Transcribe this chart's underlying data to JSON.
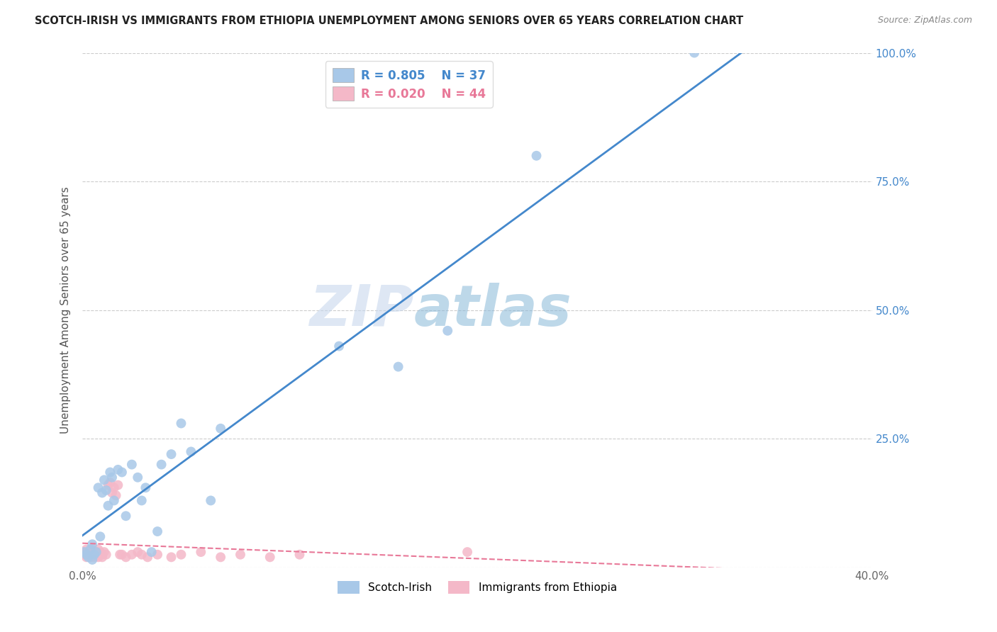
{
  "title": "SCOTCH-IRISH VS IMMIGRANTS FROM ETHIOPIA UNEMPLOYMENT AMONG SENIORS OVER 65 YEARS CORRELATION CHART",
  "source": "Source: ZipAtlas.com",
  "ylabel": "Unemployment Among Seniors over 65 years",
  "xlim": [
    0,
    0.4
  ],
  "ylim": [
    0,
    1.0
  ],
  "scotch_irish_R": 0.805,
  "scotch_irish_N": 37,
  "ethiopia_R": 0.02,
  "ethiopia_N": 44,
  "scotch_irish_color": "#a8c8e8",
  "ethiopia_color": "#f4b8c8",
  "scotch_irish_line_color": "#4488cc",
  "ethiopia_line_color": "#e87898",
  "watermark_zip": "ZIP",
  "watermark_atlas": "atlas",
  "background_color": "#ffffff",
  "scotch_irish_x": [
    0.001,
    0.002,
    0.003,
    0.004,
    0.005,
    0.005,
    0.006,
    0.007,
    0.008,
    0.009,
    0.01,
    0.011,
    0.012,
    0.013,
    0.014,
    0.015,
    0.016,
    0.018,
    0.02,
    0.022,
    0.025,
    0.028,
    0.03,
    0.032,
    0.035,
    0.038,
    0.04,
    0.045,
    0.05,
    0.055,
    0.065,
    0.07,
    0.13,
    0.16,
    0.185,
    0.23,
    0.31
  ],
  "scotch_irish_y": [
    0.03,
    0.025,
    0.02,
    0.035,
    0.015,
    0.045,
    0.025,
    0.03,
    0.155,
    0.06,
    0.145,
    0.17,
    0.15,
    0.12,
    0.185,
    0.175,
    0.13,
    0.19,
    0.185,
    0.1,
    0.2,
    0.175,
    0.13,
    0.155,
    0.03,
    0.07,
    0.2,
    0.22,
    0.28,
    0.225,
    0.13,
    0.27,
    0.43,
    0.39,
    0.46,
    0.8,
    1.0
  ],
  "ethiopia_x": [
    0.001,
    0.001,
    0.002,
    0.002,
    0.003,
    0.003,
    0.004,
    0.004,
    0.005,
    0.005,
    0.006,
    0.006,
    0.007,
    0.007,
    0.008,
    0.008,
    0.009,
    0.009,
    0.01,
    0.01,
    0.011,
    0.012,
    0.013,
    0.014,
    0.015,
    0.016,
    0.017,
    0.018,
    0.019,
    0.02,
    0.022,
    0.025,
    0.028,
    0.03,
    0.033,
    0.038,
    0.045,
    0.05,
    0.06,
    0.07,
    0.08,
    0.095,
    0.11,
    0.195
  ],
  "ethiopia_y": [
    0.025,
    0.03,
    0.02,
    0.035,
    0.025,
    0.03,
    0.02,
    0.025,
    0.035,
    0.03,
    0.025,
    0.02,
    0.03,
    0.025,
    0.02,
    0.035,
    0.025,
    0.03,
    0.025,
    0.02,
    0.03,
    0.025,
    0.16,
    0.165,
    0.145,
    0.155,
    0.14,
    0.16,
    0.025,
    0.025,
    0.02,
    0.025,
    0.03,
    0.025,
    0.02,
    0.025,
    0.02,
    0.025,
    0.03,
    0.02,
    0.025,
    0.02,
    0.025,
    0.03
  ]
}
